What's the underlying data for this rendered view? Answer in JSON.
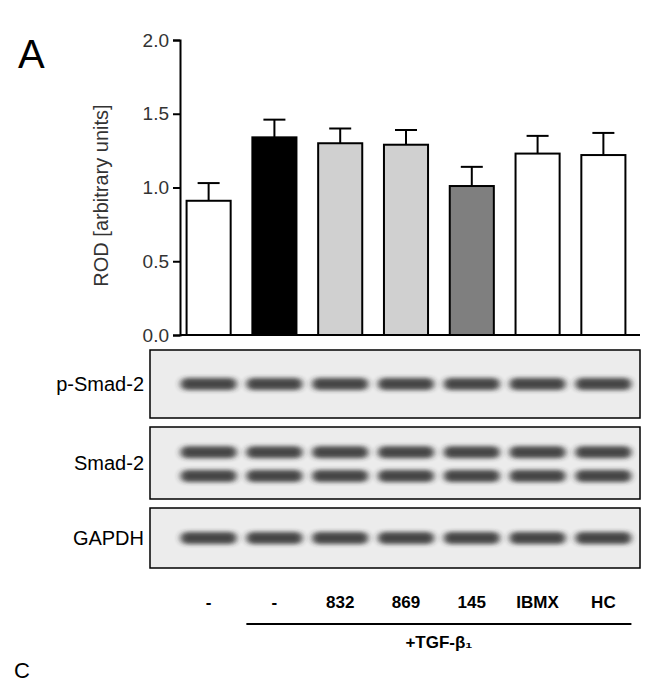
{
  "chart_data": {
    "type": "bar",
    "panel_label": "A",
    "y_label": "ROD [arbitrary units]",
    "categories": [
      "-",
      "-",
      "832",
      "869",
      "145",
      "IBMX",
      "HC"
    ],
    "values": [
      0.91,
      1.34,
      1.3,
      1.29,
      1.01,
      1.23,
      1.22
    ],
    "errors": [
      0.12,
      0.12,
      0.1,
      0.1,
      0.13,
      0.12,
      0.15
    ],
    "colors": [
      "#ffffff",
      "#000000",
      "#d0d0d0",
      "#d0d0d0",
      "#7f7f7f",
      "#ffffff",
      "#ffffff"
    ],
    "ylim": [
      0,
      2
    ],
    "yticks": [
      {
        "value": 0,
        "label": "0.0"
      },
      {
        "value": 0.5,
        "label": "0.5"
      },
      {
        "value": 1,
        "label": "1.0"
      },
      {
        "value": 1.5,
        "label": "1.5"
      },
      {
        "value": 2,
        "label": "2.0"
      }
    ],
    "blot_labels": [
      "p-Smad-2",
      "Smad-2",
      "GAPDH"
    ],
    "group_label": "+TGF-β₁",
    "annotations": [
      "C"
    ]
  }
}
